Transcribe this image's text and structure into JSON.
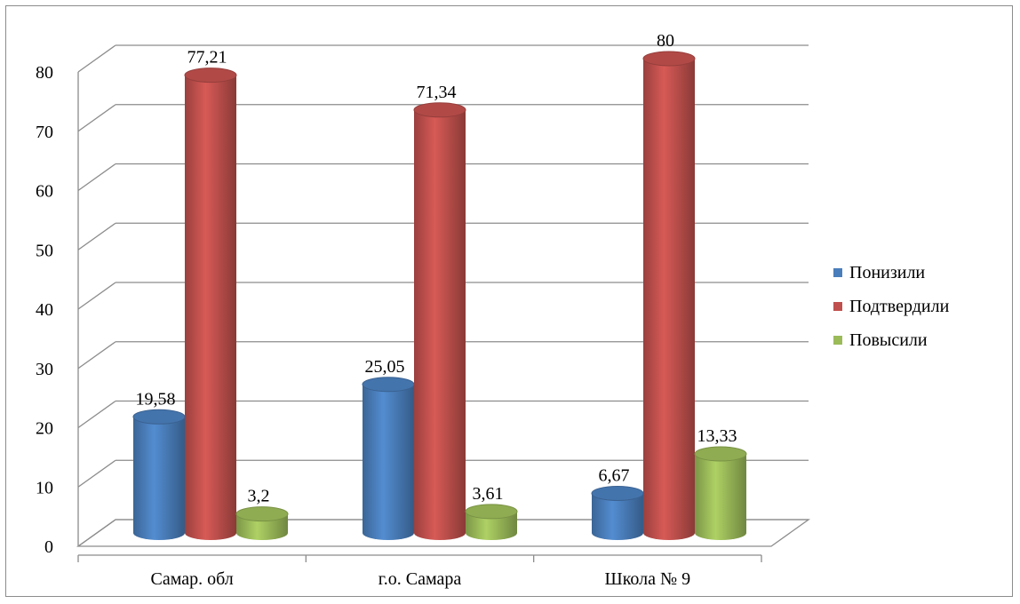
{
  "chart_data": {
    "type": "bar",
    "categories": [
      "Самар. обл",
      "г.о. Самара",
      "Школа № 9"
    ],
    "series": [
      {
        "name": "Понизили",
        "values": [
          19.58,
          25.05,
          6.67
        ],
        "labels": [
          "19,58",
          "25,05",
          "6,67"
        ],
        "color": "#4a7ebb"
      },
      {
        "name": "Подтвердили",
        "values": [
          77.21,
          71.34,
          80
        ],
        "labels": [
          "77,21",
          "71,34",
          "80"
        ],
        "color": "#c0504d"
      },
      {
        "name": "Повысили",
        "values": [
          3.2,
          3.61,
          13.33
        ],
        "labels": [
          "3,2",
          "3,61",
          "13,33"
        ],
        "color": "#9bbb59"
      }
    ],
    "ylim": [
      0,
      80
    ],
    "yticks": [
      "0",
      "10",
      "20",
      "30",
      "40",
      "50",
      "60",
      "70",
      "80"
    ],
    "grid": true,
    "legend_position": "right"
  }
}
